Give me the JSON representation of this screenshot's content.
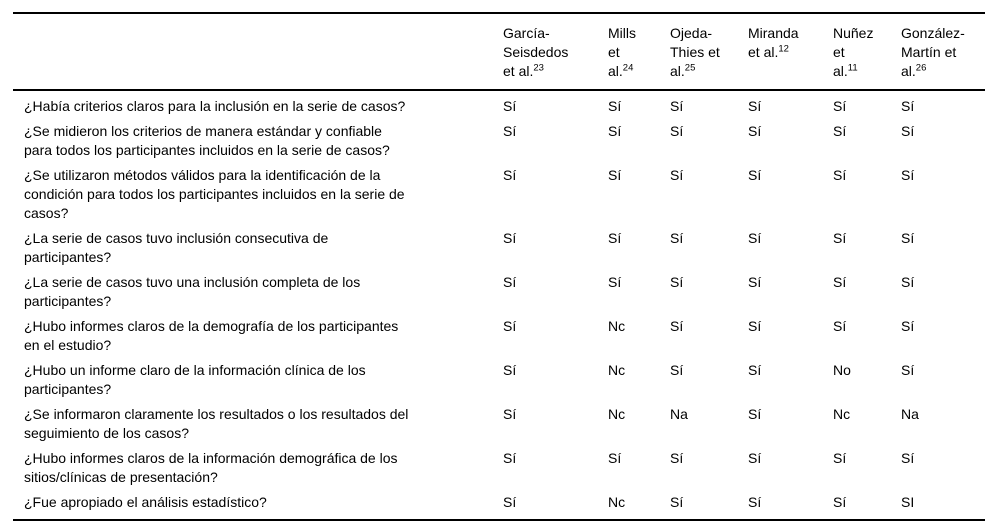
{
  "colors": {
    "background": "#ffffff",
    "text": "#000000",
    "rule": "#000000"
  },
  "table": {
    "corner_label": "",
    "studies": [
      {
        "name": "García-\nSeisdedos\net al.",
        "ref": "23"
      },
      {
        "name": "Mills\net\nal.",
        "ref": "24"
      },
      {
        "name": "Ojeda-\nThies et\nal.",
        "ref": "25"
      },
      {
        "name": "Miranda\net al.",
        "ref": "12"
      },
      {
        "name": "Nuñez\net\nal.",
        "ref": "11"
      },
      {
        "name": "González-\nMartín et\nal.",
        "ref": "26"
      }
    ],
    "rows": [
      {
        "question": "¿Había criterios claros para la inclusión en la serie de casos?",
        "answers": [
          "Sí",
          "Sí",
          "Sí",
          "Sí",
          "Sí",
          "Sí"
        ]
      },
      {
        "question": "¿Se midieron los criterios de manera estándar y confiable\npara todos los participantes incluidos en la serie de casos?",
        "answers": [
          "Sí",
          "Sí",
          "Sí",
          "Sí",
          "Sí",
          "Sí"
        ]
      },
      {
        "question": "¿Se utilizaron métodos válidos para la identificación de la\ncondición para todos los participantes incluidos en la serie de\ncasos?",
        "answers": [
          "Sí",
          "Sí",
          "Sí",
          "Sí",
          "Sí",
          "Sí"
        ]
      },
      {
        "question": "¿La serie de casos tuvo inclusión consecutiva de\nparticipantes?",
        "answers": [
          "Sí",
          "Sí",
          "Sí",
          "Sí",
          "Sí",
          "Sí"
        ]
      },
      {
        "question": "¿La serie de casos tuvo una inclusión completa de los\nparticipantes?",
        "answers": [
          "Sí",
          "Sí",
          "Sí",
          "Sí",
          "Sí",
          "Sí"
        ]
      },
      {
        "question": "¿Hubo informes claros de la demografía de los participantes\nen el estudio?",
        "answers": [
          "Sí",
          "Nc",
          "Sí",
          "Sí",
          "Sí",
          "Sí"
        ]
      },
      {
        "question": "¿Hubo un informe claro de la información clínica de los\nparticipantes?",
        "answers": [
          "Sí",
          "Nc",
          "Sí",
          "Sí",
          "No",
          "Sí"
        ]
      },
      {
        "question": "¿Se informaron claramente los resultados o los resultados del\nseguimiento de los casos?",
        "answers": [
          "Sí",
          "Nc",
          "Na",
          "Sí",
          "Nc",
          "Na"
        ]
      },
      {
        "question": "¿Hubo informes claros de la información demográfica de los\nsitios/clínicas de presentación?",
        "answers": [
          "Sí",
          "Sí",
          "Sí",
          "Sí",
          "Sí",
          "Sí"
        ]
      },
      {
        "question": "¿Fue apropiado el análisis estadístico?",
        "answers": [
          "Sí",
          "Nc",
          "Sí",
          "Sí",
          "Sí",
          "SI"
        ]
      }
    ]
  }
}
